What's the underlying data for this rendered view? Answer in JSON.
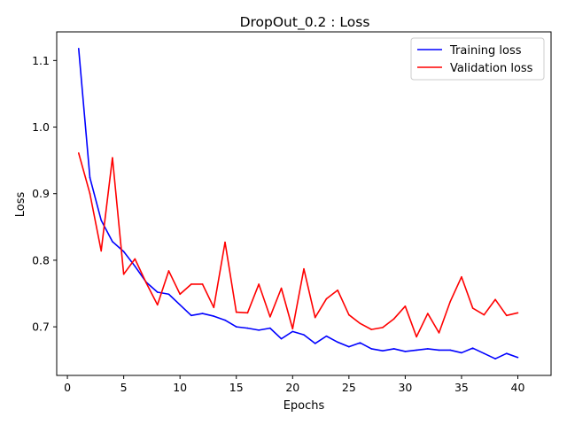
{
  "chart_data": {
    "type": "line",
    "title": "DropOut_0.2 : Loss",
    "xlabel": "Epochs",
    "ylabel": "Loss",
    "xlim": [
      -0.95,
      42.95
    ],
    "ylim": [
      0.627,
      1.143
    ],
    "xticks": [
      0,
      5,
      10,
      15,
      20,
      25,
      30,
      35,
      40
    ],
    "yticks": [
      0.7,
      0.8,
      0.9,
      1.0,
      1.1
    ],
    "ytick_labels": [
      "0.7",
      "0.8",
      "0.9",
      "1.0",
      "1.1"
    ],
    "grid": false,
    "legend_position": "upper right",
    "x": [
      1,
      2,
      3,
      4,
      5,
      6,
      7,
      8,
      9,
      10,
      11,
      12,
      13,
      14,
      15,
      16,
      17,
      18,
      19,
      20,
      21,
      22,
      23,
      24,
      25,
      26,
      27,
      28,
      29,
      30,
      31,
      32,
      33,
      34,
      35,
      36,
      37,
      38,
      39,
      40
    ],
    "series": [
      {
        "name": "Training loss",
        "color": "#0000ff",
        "values": [
          1.118,
          0.924,
          0.86,
          0.828,
          0.813,
          0.791,
          0.767,
          0.752,
          0.749,
          0.733,
          0.717,
          0.72,
          0.716,
          0.71,
          0.7,
          0.698,
          0.695,
          0.698,
          0.682,
          0.693,
          0.688,
          0.675,
          0.686,
          0.677,
          0.67,
          0.676,
          0.667,
          0.664,
          0.667,
          0.663,
          0.665,
          0.667,
          0.665,
          0.665,
          0.661,
          0.668,
          0.66,
          0.652,
          0.66,
          0.654
        ]
      },
      {
        "name": "Validation loss",
        "color": "#ff0000",
        "values": [
          0.961,
          0.9,
          0.814,
          0.954,
          0.779,
          0.802,
          0.766,
          0.733,
          0.784,
          0.749,
          0.764,
          0.764,
          0.729,
          0.827,
          0.722,
          0.721,
          0.764,
          0.715,
          0.758,
          0.697,
          0.787,
          0.714,
          0.742,
          0.755,
          0.718,
          0.705,
          0.696,
          0.699,
          0.712,
          0.731,
          0.685,
          0.72,
          0.691,
          0.738,
          0.775,
          0.728,
          0.718,
          0.741,
          0.717,
          0.721
        ]
      }
    ]
  }
}
